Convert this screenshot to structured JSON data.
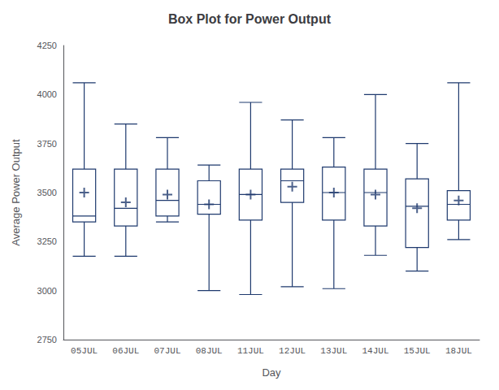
{
  "chart_data": {
    "type": "boxplot",
    "title": "Box Plot for Power Output",
    "xlabel": "Day",
    "ylabel": "Average Power Output",
    "categories": [
      "05JUL",
      "06JUL",
      "07JUL",
      "08JUL",
      "11JUL",
      "12JUL",
      "13JUL",
      "14JUL",
      "15JUL",
      "18JUL"
    ],
    "series": [
      {
        "type": "boxplot",
        "color": "#1f3a6e",
        "whislo": [
          3175,
          3175,
          3350,
          3000,
          2980,
          3020,
          3010,
          3180,
          3100,
          3260
        ],
        "q1": [
          3350,
          3330,
          3380,
          3390,
          3360,
          3450,
          3360,
          3330,
          3220,
          3360
        ],
        "med": [
          3380,
          3420,
          3460,
          3440,
          3490,
          3560,
          3500,
          3500,
          3430,
          3440
        ],
        "q3": [
          3620,
          3620,
          3620,
          3560,
          3620,
          3620,
          3630,
          3620,
          3570,
          3510
        ],
        "whishi": [
          4060,
          3850,
          3780,
          3640,
          3960,
          3870,
          3780,
          4000,
          3750,
          4060
        ]
      },
      {
        "type": "scatter",
        "marker": "+",
        "color": "#1f3a6e",
        "values": [
          3500,
          3450,
          3490,
          3440,
          3490,
          3530,
          3500,
          3490,
          3420,
          3460
        ]
      }
    ],
    "ylim": [
      2750,
      4250
    ],
    "yticks": [
      2750,
      3000,
      3250,
      3500,
      3750,
      4000,
      4250
    ],
    "grid": false
  }
}
